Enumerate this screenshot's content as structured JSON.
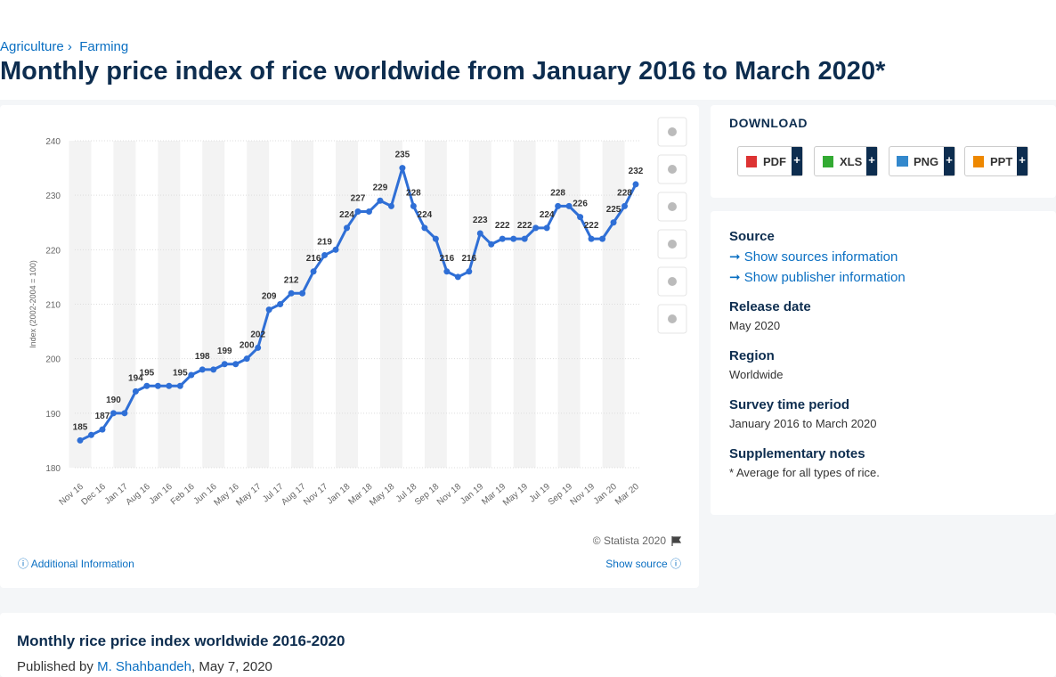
{
  "breadcrumb": [
    "Agriculture",
    "Farming"
  ],
  "page_title": "Monthly price index of rice worldwide from January 2016 to March 2020*",
  "chart_data": {
    "type": "line",
    "y_label": "Index (2002-2004 = 100)",
    "categories": [
      "Nov 16",
      null,
      "Dec 16",
      null,
      "Jan 17",
      null,
      "Aug 16",
      null,
      "Jan 16",
      null,
      "Feb 16",
      null,
      "Jun 16",
      null,
      "May 16",
      null,
      "May 17",
      null,
      "Jul 17",
      null,
      "Aug 17",
      null,
      "Nov 17",
      null,
      "Jan 18",
      null,
      "Mar 18",
      null,
      "May 18",
      null,
      "Jul 18",
      null,
      "Sep 18",
      null,
      "Nov 18",
      null,
      "Jan 19",
      null,
      "Mar 19",
      null,
      "May 19",
      null,
      "Jul 19",
      null,
      "Sep 19",
      null,
      "Nov 19",
      null,
      "Jan 20",
      null,
      "Mar 20"
    ],
    "series": [
      {
        "name": "Index",
        "color": "#2f6fd6",
        "values": [
          185,
          186,
          187,
          190,
          190,
          194,
          195,
          195,
          195,
          195,
          197,
          198,
          198,
          199,
          199,
          200,
          202,
          209,
          210,
          212,
          212,
          216,
          219,
          220,
          224,
          227,
          227,
          229,
          228,
          235,
          228,
          224,
          222,
          216,
          215,
          216,
          223,
          221,
          222,
          222,
          222,
          224,
          224,
          228,
          228,
          226,
          222,
          222,
          225,
          228,
          232
        ],
        "value_labels": [
          "185",
          null,
          "187",
          "190",
          null,
          "194",
          "195",
          null,
          null,
          "195",
          null,
          "198",
          null,
          "199",
          null,
          "200",
          "202",
          "209",
          null,
          "212",
          null,
          "216",
          "219",
          null,
          "224",
          "227",
          null,
          "229",
          null,
          "235",
          "228",
          "224",
          null,
          "216",
          null,
          "216",
          "223",
          null,
          "222",
          null,
          "222",
          null,
          "224",
          "228",
          null,
          "226",
          "222",
          null,
          "225",
          "228",
          "232"
        ]
      }
    ],
    "ylim": [
      180,
      240
    ],
    "yticks": [
      180,
      190,
      200,
      210,
      220,
      230,
      240
    ],
    "grid": true,
    "credit": "© Statista 2020"
  },
  "chart_footer": {
    "left": "Additional Information",
    "right": "Show source"
  },
  "download": {
    "title": "DOWNLOAD",
    "buttons": [
      "PDF",
      "XLS",
      "PNG",
      "PPT"
    ]
  },
  "info": [
    {
      "label": "Source",
      "links": [
        "Show sources information",
        "Show publisher information"
      ]
    },
    {
      "label": "Release date",
      "text": "May 2020"
    },
    {
      "label": "Region",
      "text": "Worldwide"
    },
    {
      "label": "Survey time period",
      "text": "January 2016 to March 2020"
    },
    {
      "label": "Supplementary notes",
      "text": "* Average for all types of rice."
    }
  ],
  "publication": {
    "title": "Monthly rice price index worldwide 2016-2020",
    "prefix": "Published by",
    "author": "M. Shahbandeh",
    "date": ", May 7, 2020"
  }
}
